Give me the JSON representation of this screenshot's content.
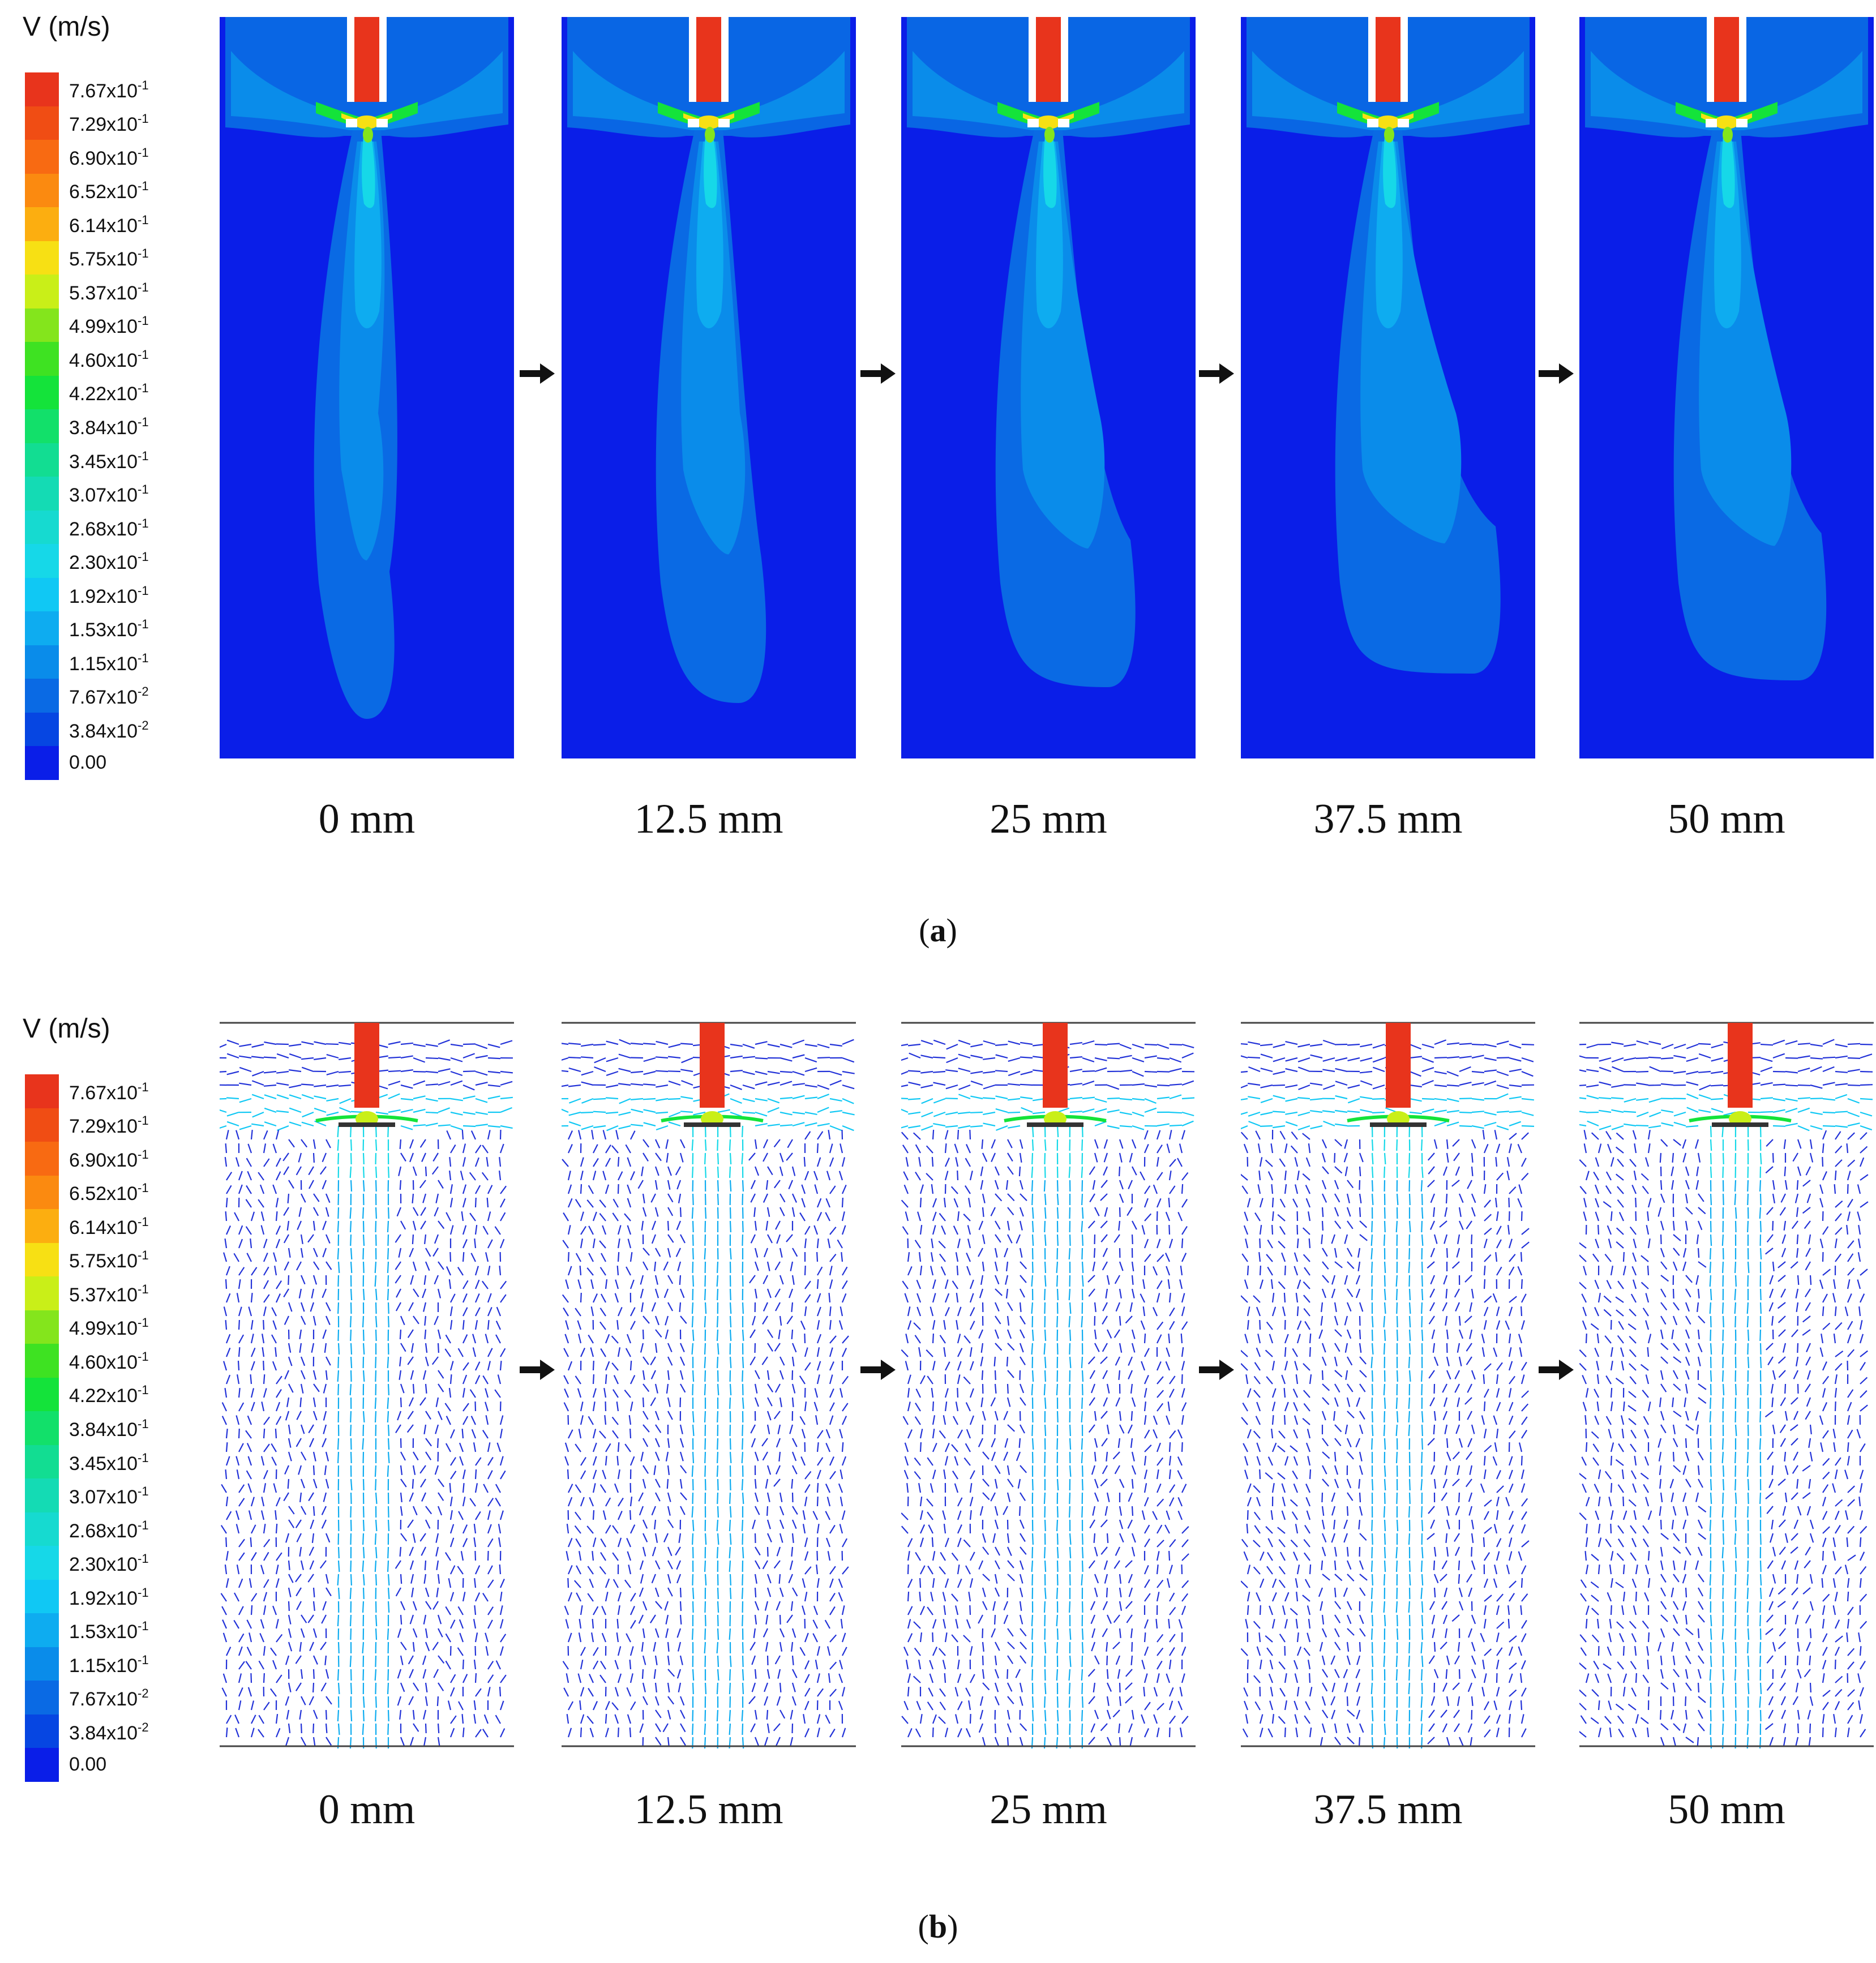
{
  "legend": {
    "title": "V (m/s)",
    "unit": "m/s",
    "entries": [
      {
        "mant": "7.67x10",
        "exp": "-1",
        "color": "#e8341c"
      },
      {
        "mant": "7.29x10",
        "exp": "-1",
        "color": "#f04d14"
      },
      {
        "mant": "6.90x10",
        "exp": "-1",
        "color": "#f86a12"
      },
      {
        "mant": "6.52x10",
        "exp": "-1",
        "color": "#fb8a10"
      },
      {
        "mant": "6.14x10",
        "exp": "-1",
        "color": "#fcae10"
      },
      {
        "mant": "5.75x10",
        "exp": "-1",
        "color": "#f7e014"
      },
      {
        "mant": "5.37x10",
        "exp": "-1",
        "color": "#c9ef18"
      },
      {
        "mant": "4.99x10",
        "exp": "-1",
        "color": "#84e51c"
      },
      {
        "mant": "4.60x10",
        "exp": "-1",
        "color": "#3ee222"
      },
      {
        "mant": "4.22x10",
        "exp": "-1",
        "color": "#14e33a"
      },
      {
        "mant": "3.84x10",
        "exp": "-1",
        "color": "#12e06a"
      },
      {
        "mant": "3.45x10",
        "exp": "-1",
        "color": "#12dd92"
      },
      {
        "mant": "3.07x10",
        "exp": "-1",
        "color": "#14dbb4"
      },
      {
        "mant": "2.68x10",
        "exp": "-1",
        "color": "#16dad0"
      },
      {
        "mant": "2.30x10",
        "exp": "-1",
        "color": "#16d8e8"
      },
      {
        "mant": "1.92x10",
        "exp": "-1",
        "color": "#10c8f4"
      },
      {
        "mant": "1.53x10",
        "exp": "-1",
        "color": "#0eacf0"
      },
      {
        "mant": "1.15x10",
        "exp": "-1",
        "color": "#0a8cea"
      },
      {
        "mant": "7.67x10",
        "exp": "-2",
        "color": "#0a6ae4"
      },
      {
        "mant": "3.84x10",
        "exp": "-2",
        "color": "#0646e2"
      },
      {
        "mant": "0.00",
        "exp": "",
        "color": "#0a1ee8"
      }
    ]
  },
  "positions": [
    "0 mm",
    "12.5 mm",
    "25 mm",
    "37.5 mm",
    "50 mm"
  ],
  "subfigures": {
    "a": {
      "label_letter": "a",
      "open": "(",
      "close": ")",
      "type": "velocity contour"
    },
    "b": {
      "label_letter": "b",
      "open": "(",
      "close": ")",
      "type": "velocity vector"
    }
  },
  "colors": {
    "background_field": "#0a1ee8",
    "shaft": "#e8341c",
    "jet": "#0eacf0",
    "vector_low": "#2232d8",
    "vector_mid": "#16d8e8",
    "arrow": "#111111"
  }
}
